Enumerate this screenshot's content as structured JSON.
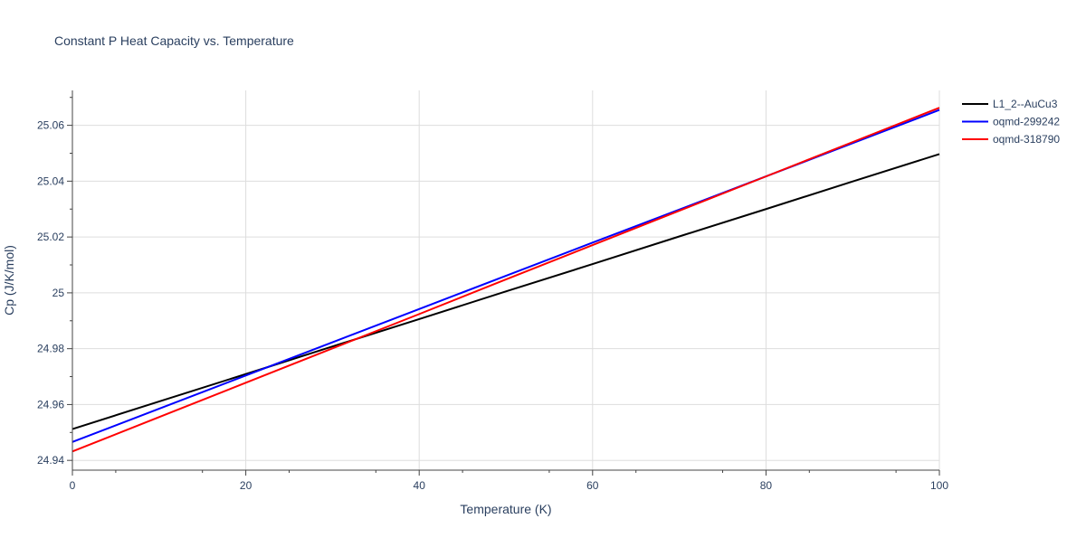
{
  "chart_data": {
    "type": "line",
    "title": "Constant P Heat Capacity vs. Temperature",
    "xlabel": "Temperature (K)",
    "ylabel": "Cp (J/K/mol)",
    "xlim": [
      0,
      100
    ],
    "ylim": [
      24.9365,
      25.0725
    ],
    "xticks": [
      0,
      20,
      40,
      60,
      80,
      100
    ],
    "xtick_labels": [
      "0",
      "20",
      "40",
      "60",
      "80",
      "100"
    ],
    "yticks": [
      24.94,
      24.96,
      24.98,
      25.0,
      25.02,
      25.04,
      25.06
    ],
    "ytick_labels": [
      "24.94",
      "24.96",
      "24.98",
      "25",
      "25.02",
      "25.04",
      "25.06"
    ],
    "grid": true,
    "legend_position": "top-right",
    "x": [
      0,
      10,
      20,
      30,
      40,
      50,
      60,
      70,
      80,
      90,
      100
    ],
    "series": [
      {
        "name": "L1_2--AuCu3",
        "color": "#000000",
        "values": [
          24.9512,
          24.9611,
          24.9709,
          24.9808,
          24.9906,
          25.0005,
          25.0103,
          25.0202,
          25.03,
          25.0399,
          25.0497
        ]
      },
      {
        "name": "oqmd-299242",
        "color": "#0000ff",
        "values": [
          24.9466,
          24.9585,
          24.9704,
          24.9823,
          24.9942,
          25.0061,
          25.018,
          25.0298,
          25.0417,
          25.0536,
          25.0655
        ]
      },
      {
        "name": "oqmd-318790",
        "color": "#ff0000",
        "values": [
          24.9432,
          24.9555,
          24.9678,
          24.9801,
          24.9924,
          25.0048,
          25.0171,
          25.0294,
          25.0417,
          25.054,
          25.0663
        ]
      }
    ]
  }
}
